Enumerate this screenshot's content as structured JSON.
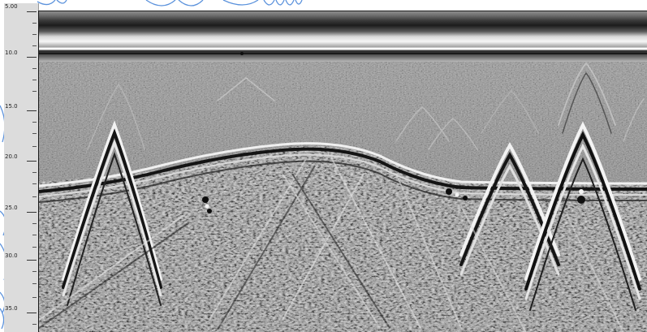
{
  "depth_axis": {
    "tick_labels": [
      "5.00",
      "10.0",
      "15.0",
      "20.0",
      "25.0",
      "30.0",
      "35.0"
    ]
  },
  "radargram": {
    "background_tone": "#8a8a8a",
    "direct_wave_dark": "#2a2a2a",
    "direct_wave_light": "#f4f4f4",
    "hyperbola_light": "#f2f2f2",
    "hyperbola_dark": "#151515"
  },
  "decor": {
    "line_color": "#3f7fd6"
  }
}
